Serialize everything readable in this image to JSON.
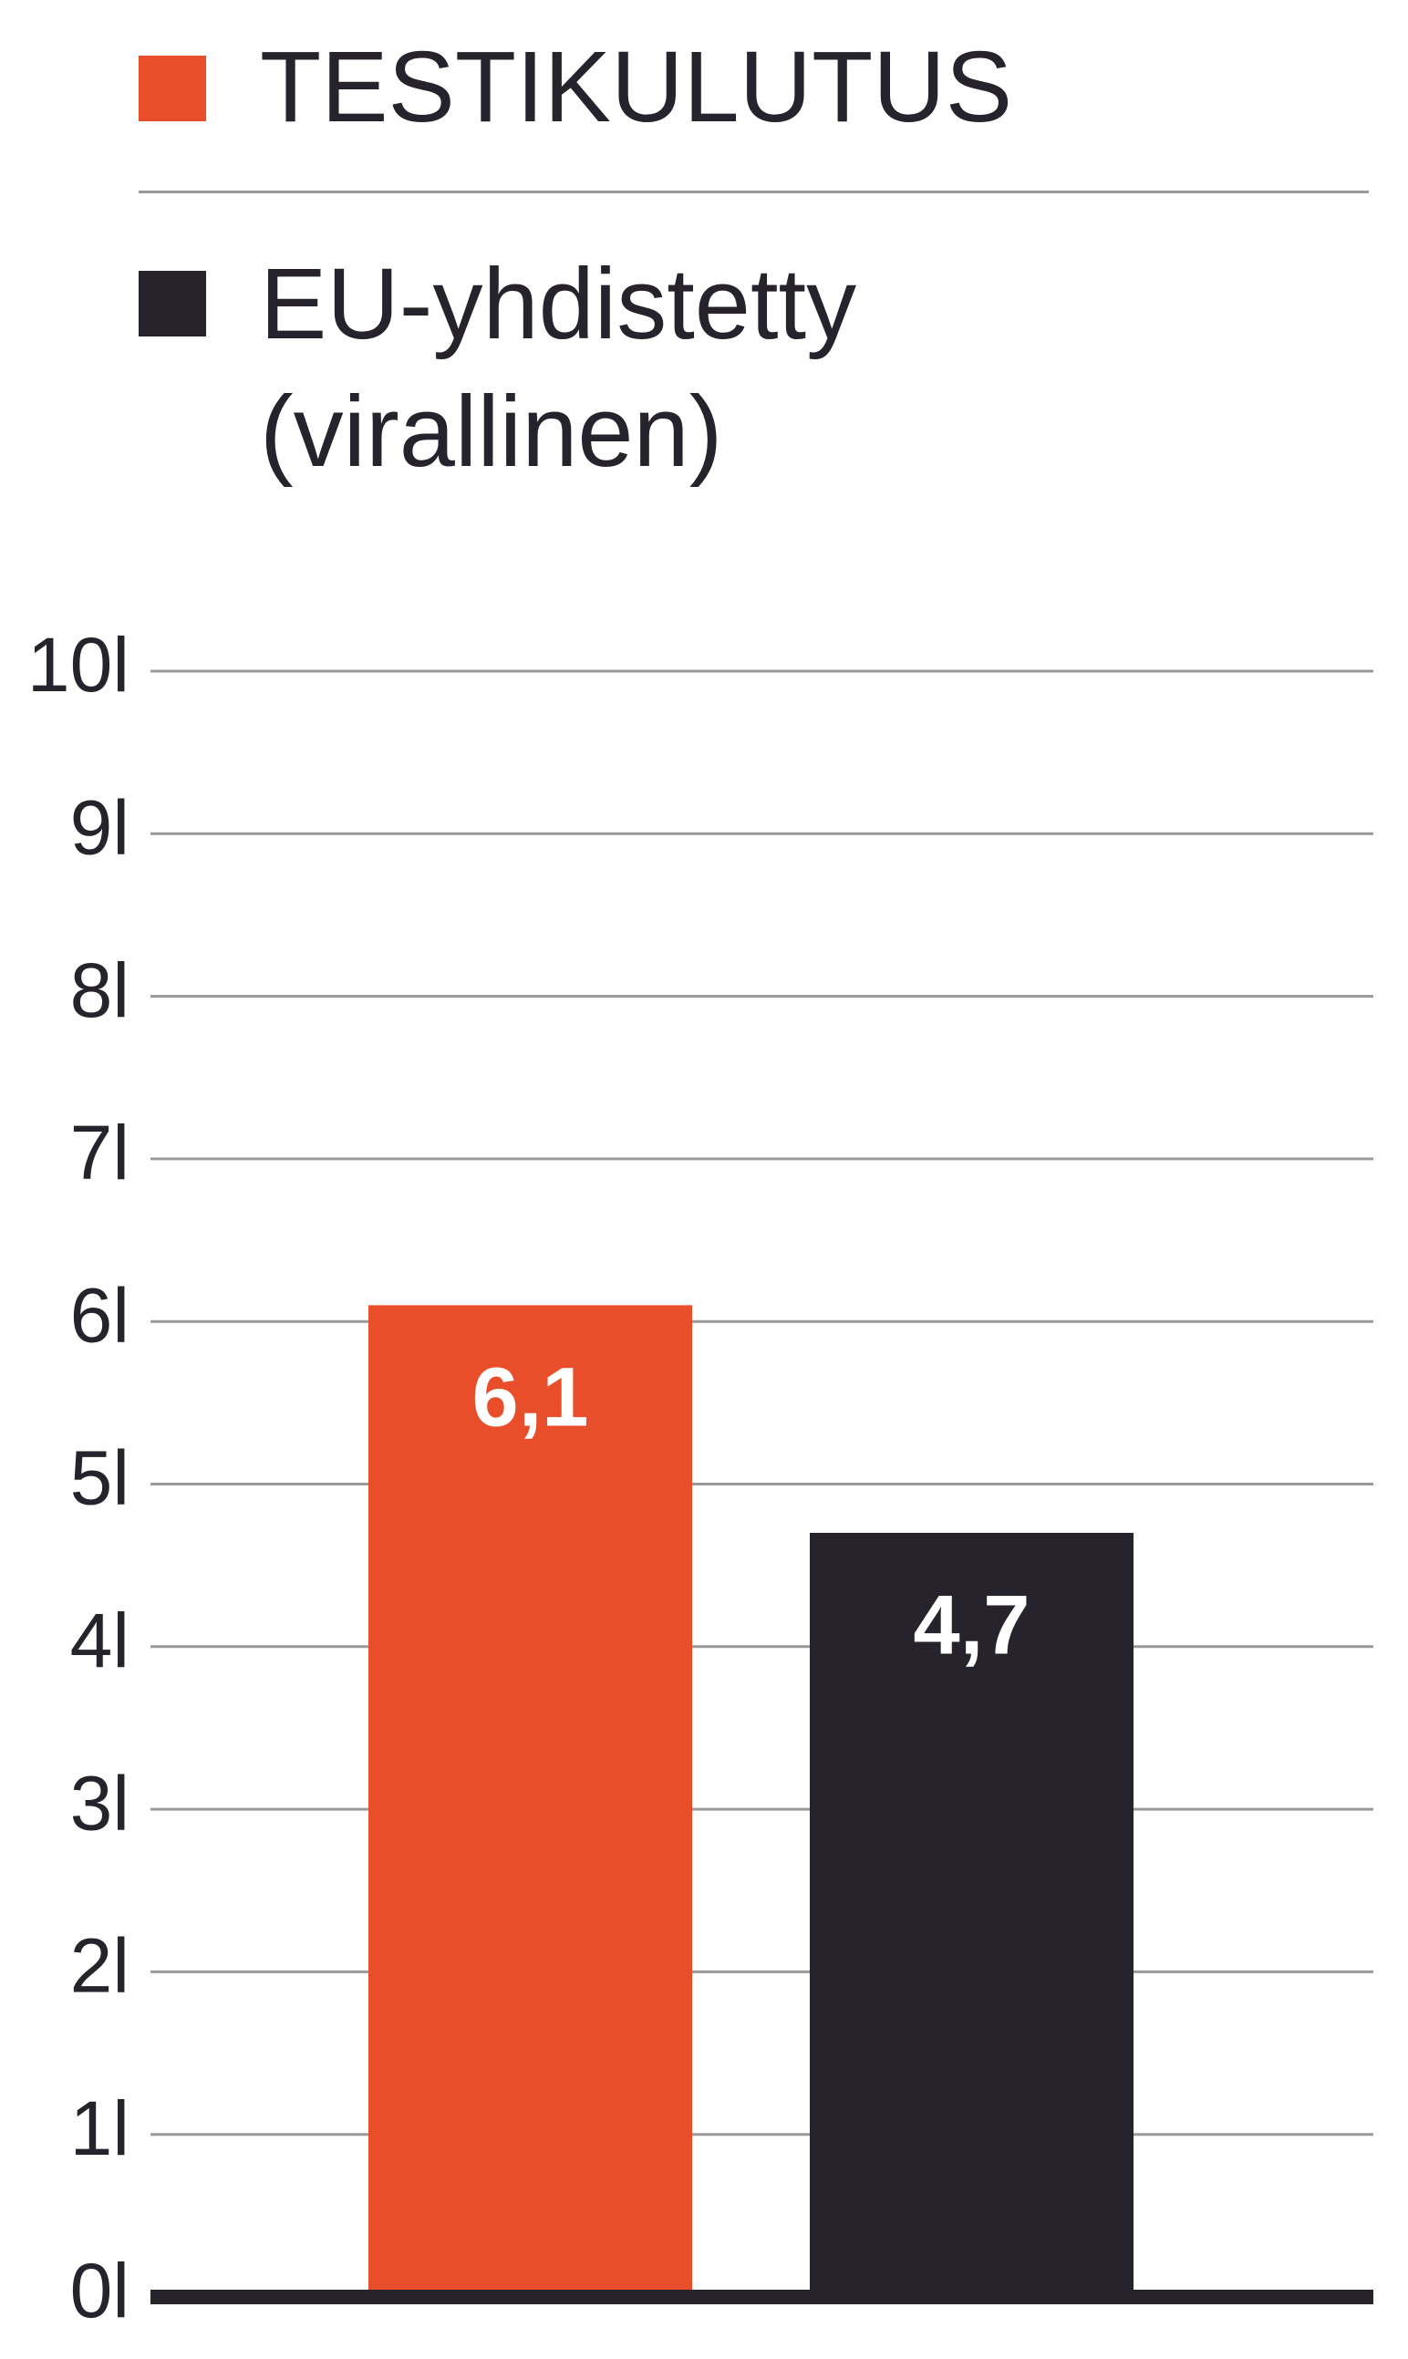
{
  "chart_data": {
    "type": "bar",
    "categories": [
      null
    ],
    "series": [
      {
        "name": "TESTIKULUTUS",
        "color": "#e94e2b",
        "values": [
          6.1
        ],
        "value_labels": [
          "6,1"
        ]
      },
      {
        "name": "EU-yhdistetty (virallinen)",
        "color": "#26232c",
        "values": [
          4.7
        ],
        "value_labels": [
          "4,7"
        ]
      }
    ],
    "ylim": [
      0,
      10
    ],
    "yticks": [
      {
        "value": 0,
        "label": "0l"
      },
      {
        "value": 1,
        "label": "1l"
      },
      {
        "value": 2,
        "label": "2l"
      },
      {
        "value": 3,
        "label": "3l"
      },
      {
        "value": 4,
        "label": "4l"
      },
      {
        "value": 5,
        "label": "5l"
      },
      {
        "value": 6,
        "label": "6l"
      },
      {
        "value": 7,
        "label": "7l"
      },
      {
        "value": 8,
        "label": "8l"
      },
      {
        "value": 9,
        "label": "9l"
      },
      {
        "value": 10,
        "label": "10l"
      }
    ],
    "grid": true
  }
}
